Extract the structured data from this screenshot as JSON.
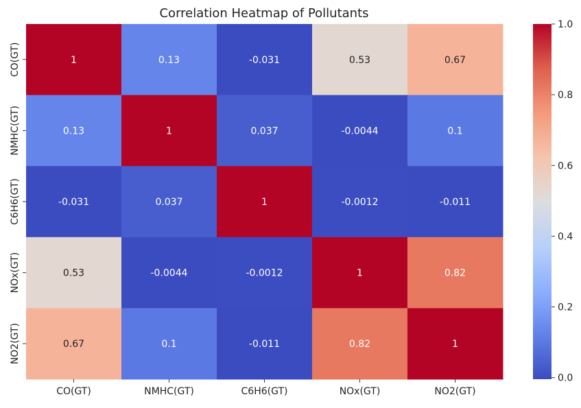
{
  "chart_data": {
    "type": "heatmap",
    "title": "Correlation Heatmap of Pollutants",
    "xlabel": "",
    "ylabel": "",
    "x_categories": [
      "CO(GT)",
      "NMHC(GT)",
      "C6H6(GT)",
      "NOx(GT)",
      "NO2(GT)"
    ],
    "y_categories": [
      "CO(GT)",
      "NMHC(GT)",
      "C6H6(GT)",
      "NOx(GT)",
      "NO2(GT)"
    ],
    "values": [
      [
        1,
        0.13,
        -0.031,
        0.53,
        0.67
      ],
      [
        0.13,
        1,
        0.037,
        -0.0044,
        0.1
      ],
      [
        -0.031,
        0.037,
        1,
        -0.0012,
        -0.011
      ],
      [
        0.53,
        -0.0044,
        -0.0012,
        1,
        0.82
      ],
      [
        0.67,
        0.1,
        -0.011,
        0.82,
        1
      ]
    ],
    "cell_labels": [
      [
        "1",
        "0.13",
        "-0.031",
        "0.53",
        "0.67"
      ],
      [
        "0.13",
        "1",
        "0.037",
        "-0.0044",
        "0.1"
      ],
      [
        "-0.031",
        "0.037",
        "1",
        "-0.0012",
        "-0.011"
      ],
      [
        "0.53",
        "-0.0044",
        "-0.0012",
        "1",
        "0.82"
      ],
      [
        "0.67",
        "0.1",
        "-0.011",
        "0.82",
        "1"
      ]
    ],
    "colormap": "coolwarm",
    "colorbar": {
      "range": [
        -0.0044,
        1.0
      ],
      "ticks": [
        0.0,
        0.2,
        0.4,
        0.6,
        0.8,
        1.0
      ],
      "tick_labels": [
        "0.0",
        "0.2",
        "0.4",
        "0.6",
        "0.8",
        "1.0"
      ],
      "placement": "right"
    },
    "grid": false
  }
}
